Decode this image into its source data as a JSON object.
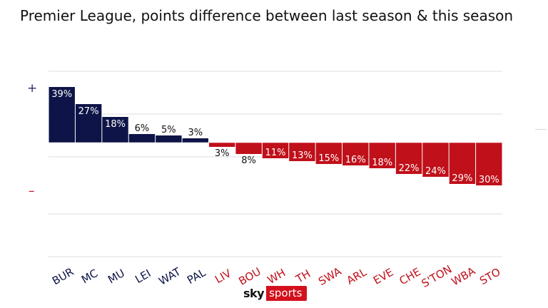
{
  "header": {
    "title": "Premier League, points difference between last season & this season"
  },
  "legend": {
    "plus": "+",
    "minus": "–"
  },
  "logo": {
    "sky": "sky",
    "sports": "sports"
  },
  "colors": {
    "positive": "#0e1447",
    "negative": "#c0101a",
    "grid": "#dedede"
  },
  "chart_data": {
    "type": "bar",
    "title": "Premier League, points difference between last season & this season",
    "xlabel": "",
    "ylabel": "",
    "ylim": [
      -60,
      60
    ],
    "grid": true,
    "categories": [
      "BUR",
      "MC",
      "MU",
      "LEI",
      "WAT",
      "PAL",
      "LIV",
      "BOU",
      "WH",
      "TH",
      "SWA",
      "ARL",
      "EVE",
      "CHE",
      "S'TON",
      "WBA",
      "STO"
    ],
    "values": [
      39,
      27,
      18,
      6,
      5,
      3,
      -3,
      -8,
      -11,
      -13,
      -15,
      -16,
      -18,
      -22,
      -24,
      -29,
      -30
    ],
    "data_labels": [
      "39%",
      "27%",
      "18%",
      "6%",
      "5%",
      "3%",
      "3%",
      "8%",
      "11%",
      "13%",
      "15%",
      "16%",
      "18%",
      "22%",
      "24%",
      "29%",
      "30%"
    ]
  }
}
